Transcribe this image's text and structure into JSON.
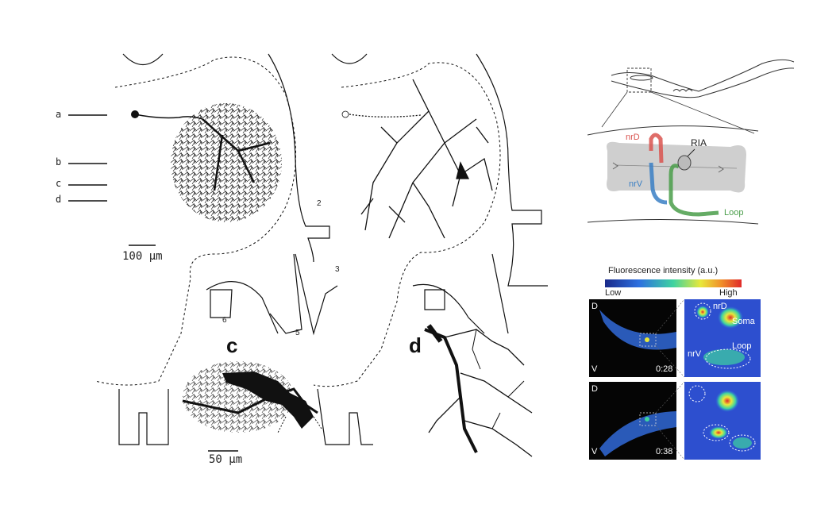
{
  "left_figure": {
    "level_labels": [
      "a",
      "b",
      "c",
      "d"
    ],
    "scale_top": "100 μm",
    "scale_bottom": "50 μm",
    "segment_labels": [
      "2",
      "3",
      "5",
      "6"
    ],
    "panel_labels": [
      "c",
      "d"
    ]
  },
  "worm_diagram": {
    "labels": {
      "nrD": "nrD",
      "nrV": "nrV",
      "RIA": "RIA",
      "loop": "Loop"
    },
    "colors": {
      "nrD": "#d9534f",
      "nrV": "#3a7fc4",
      "loop": "#4a9e4a"
    }
  },
  "fluorescence": {
    "title": "Fluorescence intensity (a.u.)",
    "low": "Low",
    "high": "High",
    "frames": [
      {
        "time": "0:28",
        "dorsal": "D",
        "ventral": "V"
      },
      {
        "time": "0:38",
        "dorsal": "D",
        "ventral": "V"
      }
    ],
    "zoom_labels": {
      "nrD": "nrD",
      "soma": "Soma",
      "nrV": "nrV",
      "loop": "Loop"
    }
  }
}
